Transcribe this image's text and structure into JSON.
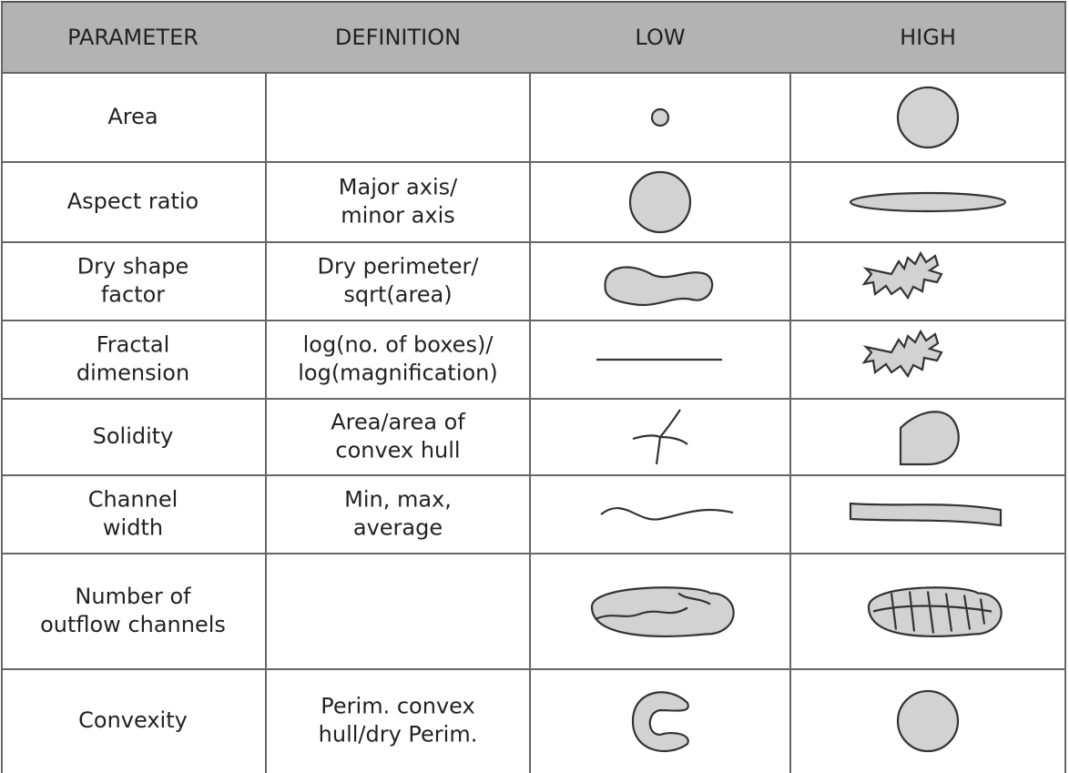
{
  "table": {
    "columns": [
      "PARAMETER",
      "DEFINITION",
      "LOW",
      "HIGH"
    ],
    "rows": [
      {
        "parameter": [
          "Area"
        ]
      },
      {
        "parameter": [
          "Aspect ratio"
        ],
        "definition": [
          "Major axis/",
          "minor axis"
        ]
      },
      {
        "parameter": [
          "Dry shape",
          "factor"
        ],
        "definition": [
          "Dry perimeter/",
          "sqrt(area)"
        ]
      },
      {
        "parameter": [
          "Fractal",
          "dimension"
        ],
        "definition": [
          "log(no. of boxes)/",
          "log(magnification)"
        ]
      },
      {
        "parameter": [
          "Solidity"
        ],
        "definition": [
          "Area/area of",
          "convex hull"
        ]
      },
      {
        "parameter": [
          "Channel",
          "width"
        ],
        "definition": [
          "Min, max,",
          "average"
        ]
      },
      {
        "parameter": [
          "Number of",
          "outflow channels"
        ]
      },
      {
        "parameter": [
          "Convexity"
        ],
        "definition": [
          "Perim. convex",
          "hull/dry Perim."
        ]
      }
    ]
  }
}
